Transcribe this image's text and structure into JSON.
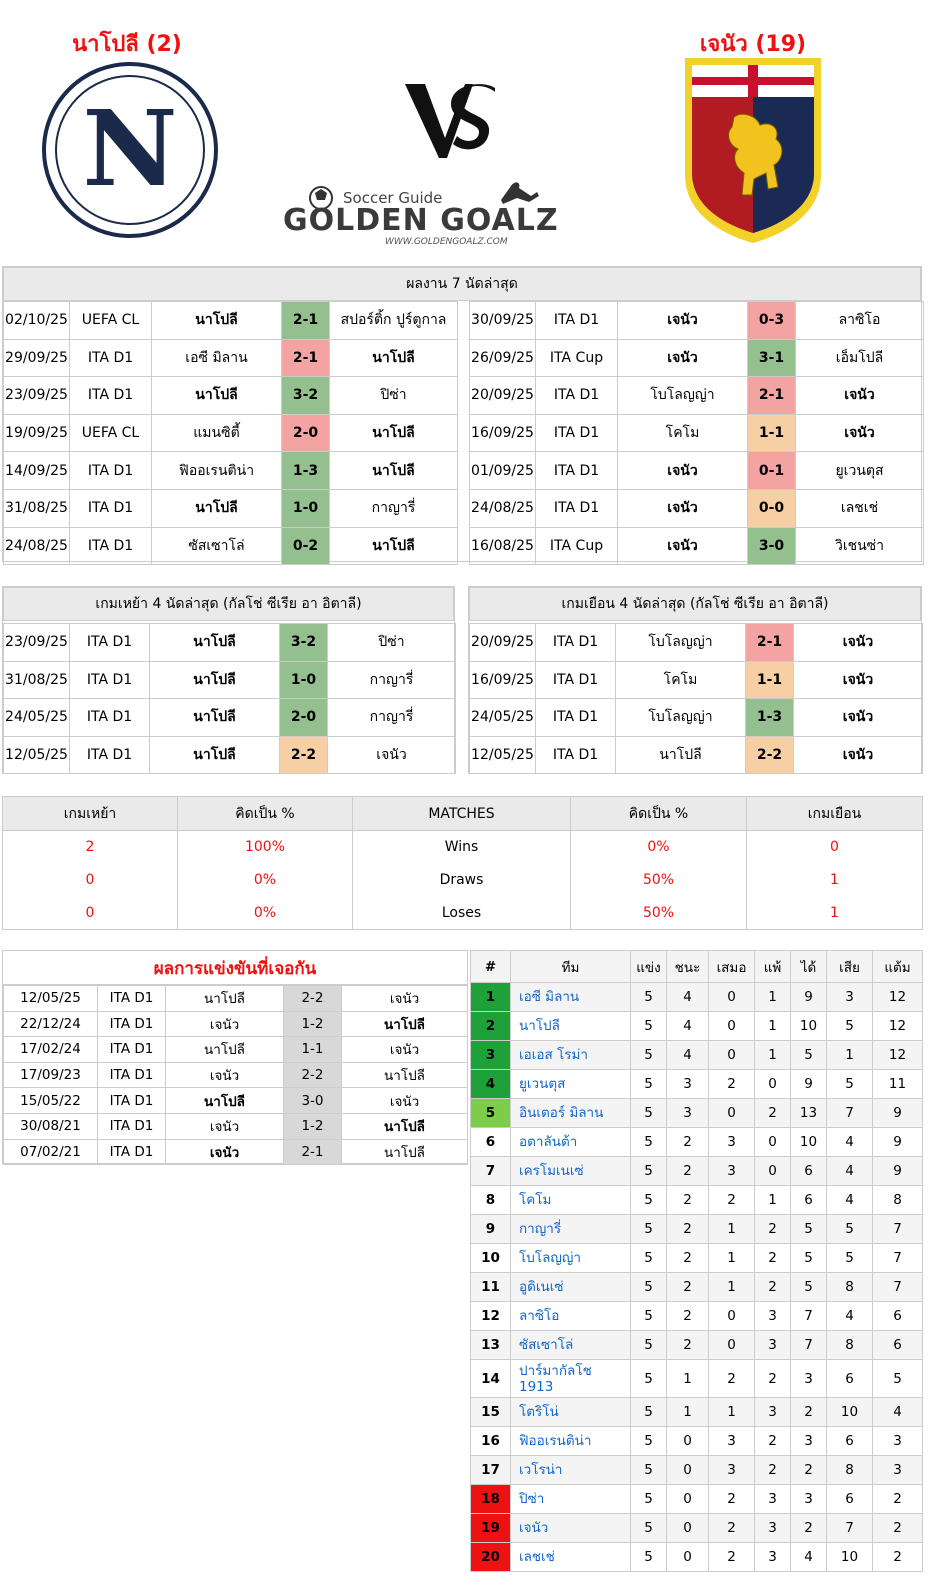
{
  "header": {
    "home_title": "นาโปลี (2)",
    "away_title": "เจนัว (19)",
    "brand_small": "Soccer Guide",
    "brand_big": "GOLDEN GOALZ",
    "brand_url": "WWW.GOLDENGOALZ.COM",
    "home_logo_letter": "N"
  },
  "recent": {
    "title": "ผลงาน 7 นัดล่าสุด",
    "home": [
      {
        "date": "02/10/25",
        "comp": "UEFA CL",
        "home": "นาโปลี",
        "score": "2-1",
        "away": "สปอร์ติ้ก ปูร์ตูกาล",
        "res": "win",
        "bold": "home"
      },
      {
        "date": "29/09/25",
        "comp": "ITA D1",
        "home": "เอซี มิลาน",
        "score": "2-1",
        "away": "นาโปลี",
        "res": "loss",
        "bold": "away"
      },
      {
        "date": "23/09/25",
        "comp": "ITA D1",
        "home": "นาโปลี",
        "score": "3-2",
        "away": "ปิซ่า",
        "res": "win",
        "bold": "home"
      },
      {
        "date": "19/09/25",
        "comp": "UEFA CL",
        "home": "แมนซิตี้",
        "score": "2-0",
        "away": "นาโปลี",
        "res": "loss",
        "bold": "away"
      },
      {
        "date": "14/09/25",
        "comp": "ITA D1",
        "home": "ฟิออเรนติน่า",
        "score": "1-3",
        "away": "นาโปลี",
        "res": "win",
        "bold": "away"
      },
      {
        "date": "31/08/25",
        "comp": "ITA D1",
        "home": "นาโปลี",
        "score": "1-0",
        "away": "กาญารี่",
        "res": "win",
        "bold": "home"
      },
      {
        "date": "24/08/25",
        "comp": "ITA D1",
        "home": "ซัสเซาโล่",
        "score": "0-2",
        "away": "นาโปลี",
        "res": "win",
        "bold": "away"
      }
    ],
    "away": [
      {
        "date": "30/09/25",
        "comp": "ITA D1",
        "home": "เจนัว",
        "score": "0-3",
        "away": "ลาซิโอ",
        "res": "loss",
        "bold": "home"
      },
      {
        "date": "26/09/25",
        "comp": "ITA Cup",
        "home": "เจนัว",
        "score": "3-1",
        "away": "เอ็มโปลี",
        "res": "win",
        "bold": "home"
      },
      {
        "date": "20/09/25",
        "comp": "ITA D1",
        "home": "โบโลญญ่า",
        "score": "2-1",
        "away": "เจนัว",
        "res": "loss",
        "bold": "away"
      },
      {
        "date": "16/09/25",
        "comp": "ITA D1",
        "home": "โคโม",
        "score": "1-1",
        "away": "เจนัว",
        "res": "draw",
        "bold": "away"
      },
      {
        "date": "01/09/25",
        "comp": "ITA D1",
        "home": "เจนัว",
        "score": "0-1",
        "away": "ยูเวนตุส",
        "res": "loss",
        "bold": "home"
      },
      {
        "date": "24/08/25",
        "comp": "ITA D1",
        "home": "เจนัว",
        "score": "0-0",
        "away": "เลชเช่",
        "res": "draw",
        "bold": "home"
      },
      {
        "date": "16/08/25",
        "comp": "ITA Cup",
        "home": "เจนัว",
        "score": "3-0",
        "away": "วิเชนซ่า",
        "res": "win",
        "bold": "home"
      }
    ]
  },
  "last4": {
    "home_title": "เกมเหย้า 4 นัดล่าสุด (กัลโช่ ซีเรีย อา อิตาลี)",
    "away_title": "เกมเยือน 4 นัดล่าสุด (กัลโช่ ซีเรีย อา อิตาลี)",
    "home": [
      {
        "date": "23/09/25",
        "comp": "ITA D1",
        "home": "นาโปลี",
        "score": "3-2",
        "away": "ปิซ่า",
        "res": "win",
        "bold": "home"
      },
      {
        "date": "31/08/25",
        "comp": "ITA D1",
        "home": "นาโปลี",
        "score": "1-0",
        "away": "กาญารี่",
        "res": "win",
        "bold": "home"
      },
      {
        "date": "24/05/25",
        "comp": "ITA D1",
        "home": "นาโปลี",
        "score": "2-0",
        "away": "กาญารี่",
        "res": "win",
        "bold": "home"
      },
      {
        "date": "12/05/25",
        "comp": "ITA D1",
        "home": "นาโปลี",
        "score": "2-2",
        "away": "เจนัว",
        "res": "draw",
        "bold": "home"
      }
    ],
    "away": [
      {
        "date": "20/09/25",
        "comp": "ITA D1",
        "home": "โบโลญญ่า",
        "score": "2-1",
        "away": "เจนัว",
        "res": "loss",
        "bold": "away"
      },
      {
        "date": "16/09/25",
        "comp": "ITA D1",
        "home": "โคโม",
        "score": "1-1",
        "away": "เจนัว",
        "res": "draw",
        "bold": "away"
      },
      {
        "date": "24/05/25",
        "comp": "ITA D1",
        "home": "โบโลญญ่า",
        "score": "1-3",
        "away": "เจนัว",
        "res": "win",
        "bold": "away"
      },
      {
        "date": "12/05/25",
        "comp": "ITA D1",
        "home": "นาโปลี",
        "score": "2-2",
        "away": "เจนัว",
        "res": "draw",
        "bold": "away"
      }
    ]
  },
  "stats": {
    "headers": [
      "เกมเหย้า",
      "คิดเป็น %",
      "MATCHES",
      "คิดเป็น %",
      "เกมเยือน"
    ],
    "rows": [
      {
        "h": "2",
        "hp": "100%",
        "label": "Wins",
        "ap": "0%",
        "a": "0"
      },
      {
        "h": "0",
        "hp": "0%",
        "label": "Draws",
        "ap": "50%",
        "a": "1"
      },
      {
        "h": "0",
        "hp": "0%",
        "label": "Loses",
        "ap": "50%",
        "a": "1"
      }
    ]
  },
  "h2h": {
    "title": "ผลการแข่งขันที่เจอกัน",
    "rows": [
      {
        "date": "12/05/25",
        "comp": "ITA D1",
        "home": "นาโปลี",
        "score": "2-2",
        "away": "เจนัว",
        "bold": ""
      },
      {
        "date": "22/12/24",
        "comp": "ITA D1",
        "home": "เจนัว",
        "score": "1-2",
        "away": "นาโปลี",
        "bold": "away"
      },
      {
        "date": "17/02/24",
        "comp": "ITA D1",
        "home": "นาโปลี",
        "score": "1-1",
        "away": "เจนัว",
        "bold": ""
      },
      {
        "date": "17/09/23",
        "comp": "ITA D1",
        "home": "เจนัว",
        "score": "2-2",
        "away": "นาโปลี",
        "bold": ""
      },
      {
        "date": "15/05/22",
        "comp": "ITA D1",
        "home": "นาโปลี",
        "score": "3-0",
        "away": "เจนัว",
        "bold": "home"
      },
      {
        "date": "30/08/21",
        "comp": "ITA D1",
        "home": "เจนัว",
        "score": "1-2",
        "away": "นาโปลี",
        "bold": "away"
      },
      {
        "date": "07/02/21",
        "comp": "ITA D1",
        "home": "เจนัว",
        "score": "2-1",
        "away": "นาโปลี",
        "bold": "home"
      }
    ]
  },
  "league": {
    "headers": [
      "#",
      "ทีม",
      "แข่ง",
      "ชนะ",
      "เสมอ",
      "แพ้",
      "ได้",
      "เสีย",
      "แต้ม"
    ],
    "zone_colors": {
      "g": "#1fa13a",
      "lg5": "#7ccd4a",
      "r": "#ee1111"
    },
    "rows": [
      {
        "rank": "1",
        "team": "เอซี มิลาน",
        "p": "5",
        "w": "4",
        "d": "0",
        "l": "1",
        "gf": "9",
        "ga": "3",
        "pts": "12",
        "zone": "g"
      },
      {
        "rank": "2",
        "team": "นาโปลี",
        "p": "5",
        "w": "4",
        "d": "0",
        "l": "1",
        "gf": "10",
        "ga": "5",
        "pts": "12",
        "zone": "g"
      },
      {
        "rank": "3",
        "team": "เอเอส โรม่า",
        "p": "5",
        "w": "4",
        "d": "0",
        "l": "1",
        "gf": "5",
        "ga": "1",
        "pts": "12",
        "zone": "g"
      },
      {
        "rank": "4",
        "team": "ยูเวนตุส",
        "p": "5",
        "w": "3",
        "d": "2",
        "l": "0",
        "gf": "9",
        "ga": "5",
        "pts": "11",
        "zone": "g"
      },
      {
        "rank": "5",
        "team": "อินเตอร์ มิลาน",
        "p": "5",
        "w": "3",
        "d": "0",
        "l": "2",
        "gf": "13",
        "ga": "7",
        "pts": "9",
        "zone": "lg5"
      },
      {
        "rank": "6",
        "team": "อตาลันต้า",
        "p": "5",
        "w": "2",
        "d": "3",
        "l": "0",
        "gf": "10",
        "ga": "4",
        "pts": "9",
        "zone": ""
      },
      {
        "rank": "7",
        "team": "เครโมเนเซ่",
        "p": "5",
        "w": "2",
        "d": "3",
        "l": "0",
        "gf": "6",
        "ga": "4",
        "pts": "9",
        "zone": ""
      },
      {
        "rank": "8",
        "team": "โคโม",
        "p": "5",
        "w": "2",
        "d": "2",
        "l": "1",
        "gf": "6",
        "ga": "4",
        "pts": "8",
        "zone": ""
      },
      {
        "rank": "9",
        "team": "กาญารี่",
        "p": "5",
        "w": "2",
        "d": "1",
        "l": "2",
        "gf": "5",
        "ga": "5",
        "pts": "7",
        "zone": ""
      },
      {
        "rank": "10",
        "team": "โบโลญญ่า",
        "p": "5",
        "w": "2",
        "d": "1",
        "l": "2",
        "gf": "5",
        "ga": "5",
        "pts": "7",
        "zone": ""
      },
      {
        "rank": "11",
        "team": "อูดิเนเซ่",
        "p": "5",
        "w": "2",
        "d": "1",
        "l": "2",
        "gf": "5",
        "ga": "8",
        "pts": "7",
        "zone": ""
      },
      {
        "rank": "12",
        "team": "ลาซิโอ",
        "p": "5",
        "w": "2",
        "d": "0",
        "l": "3",
        "gf": "7",
        "ga": "4",
        "pts": "6",
        "zone": ""
      },
      {
        "rank": "13",
        "team": "ซัสเซาโล่",
        "p": "5",
        "w": "2",
        "d": "0",
        "l": "3",
        "gf": "7",
        "ga": "8",
        "pts": "6",
        "zone": ""
      },
      {
        "rank": "14",
        "team": "ปาร์มากัลโช 1913",
        "p": "5",
        "w": "1",
        "d": "2",
        "l": "2",
        "gf": "3",
        "ga": "6",
        "pts": "5",
        "zone": ""
      },
      {
        "rank": "15",
        "team": "โตริโน่",
        "p": "5",
        "w": "1",
        "d": "1",
        "l": "3",
        "gf": "2",
        "ga": "10",
        "pts": "4",
        "zone": ""
      },
      {
        "rank": "16",
        "team": "ฟิออเรนติน่า",
        "p": "5",
        "w": "0",
        "d": "3",
        "l": "2",
        "gf": "3",
        "ga": "6",
        "pts": "3",
        "zone": ""
      },
      {
        "rank": "17",
        "team": "เวโรน่า",
        "p": "5",
        "w": "0",
        "d": "3",
        "l": "2",
        "gf": "2",
        "ga": "8",
        "pts": "3",
        "zone": ""
      },
      {
        "rank": "18",
        "team": "ปิซ่า",
        "p": "5",
        "w": "0",
        "d": "2",
        "l": "3",
        "gf": "3",
        "ga": "6",
        "pts": "2",
        "zone": "r"
      },
      {
        "rank": "19",
        "team": "เจนัว",
        "p": "5",
        "w": "0",
        "d": "2",
        "l": "3",
        "gf": "2",
        "ga": "7",
        "pts": "2",
        "zone": "r"
      },
      {
        "rank": "20",
        "team": "เลชเช่",
        "p": "5",
        "w": "0",
        "d": "2",
        "l": "3",
        "gf": "4",
        "ga": "10",
        "pts": "2",
        "zone": "r"
      }
    ]
  }
}
